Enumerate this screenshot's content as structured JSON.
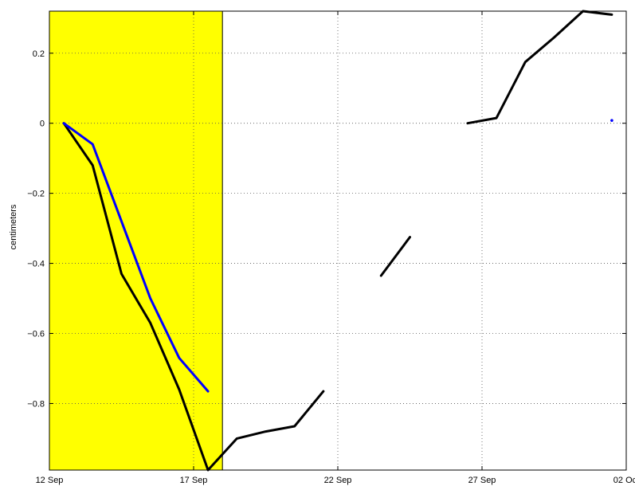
{
  "chart_data": {
    "type": "line",
    "title": "",
    "xlabel": "",
    "ylabel": "centimeters",
    "x_axis_type": "date",
    "xlim": [
      "2000-09-12",
      "2000-10-02"
    ],
    "ylim": [
      -0.99,
      0.32
    ],
    "x_ticks": [
      {
        "date": "2000-09-12",
        "label": "12 Sep"
      },
      {
        "date": "2000-09-17",
        "label": "17 Sep"
      },
      {
        "date": "2000-09-22",
        "label": "22 Sep"
      },
      {
        "date": "2000-09-27",
        "label": "27 Sep"
      },
      {
        "date": "2000-10-02",
        "label": "02 Oct"
      }
    ],
    "y_ticks": [
      {
        "value": 0.2,
        "label": "0.2"
      },
      {
        "value": 0,
        "label": "0"
      },
      {
        "value": -0.2,
        "label": "−0.2"
      },
      {
        "value": -0.4,
        "label": "−0.4"
      },
      {
        "value": -0.6,
        "label": "−0.6"
      },
      {
        "value": -0.8,
        "label": "−0.8"
      }
    ],
    "grid": "dotted",
    "shaded_region": {
      "x_start": "2000-09-12",
      "x_end": "2000-09-18",
      "color": "#ffff00"
    },
    "series": [
      {
        "color": "#000000",
        "segments": [
          [
            {
              "x": "2000-09-12T12:00",
              "y": 0.0
            },
            {
              "x": "2000-09-13T12:00",
              "y": -0.12
            },
            {
              "x": "2000-09-14T12:00",
              "y": -0.43
            },
            {
              "x": "2000-09-15T12:00",
              "y": -0.57
            },
            {
              "x": "2000-09-16T12:00",
              "y": -0.76
            },
            {
              "x": "2000-09-17T12:00",
              "y": -0.99
            },
            {
              "x": "2000-09-18T12:00",
              "y": -0.9
            },
            {
              "x": "2000-09-19T12:00",
              "y": -0.88
            },
            {
              "x": "2000-09-20T12:00",
              "y": -0.865
            },
            {
              "x": "2000-09-21T12:00",
              "y": -0.765
            }
          ],
          [
            {
              "x": "2000-09-23T12:00",
              "y": -0.435
            },
            {
              "x": "2000-09-24T12:00",
              "y": -0.325
            }
          ],
          [
            {
              "x": "2000-09-26T12:00",
              "y": 0.0
            },
            {
              "x": "2000-09-27T12:00",
              "y": 0.015
            },
            {
              "x": "2000-09-28T12:00",
              "y": 0.175
            },
            {
              "x": "2000-09-29T12:00",
              "y": 0.245
            },
            {
              "x": "2000-09-30T12:00",
              "y": 0.32
            },
            {
              "x": "2000-10-01T12:00",
              "y": 0.31
            }
          ]
        ]
      },
      {
        "color": "#0000ff",
        "segments": [
          [
            {
              "x": "2000-09-12T12:00",
              "y": 0.0
            },
            {
              "x": "2000-09-13T12:00",
              "y": -0.06
            },
            {
              "x": "2000-09-14T12:00",
              "y": -0.28
            },
            {
              "x": "2000-09-15T12:00",
              "y": -0.5
            },
            {
              "x": "2000-09-16T12:00",
              "y": -0.67
            },
            {
              "x": "2000-09-17T12:00",
              "y": -0.765
            }
          ],
          [
            {
              "x": "2000-10-01T12:00",
              "y": 0.008
            }
          ]
        ]
      }
    ]
  }
}
